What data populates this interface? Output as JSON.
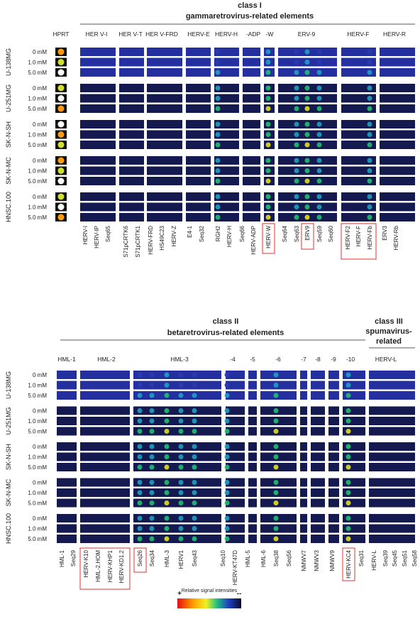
{
  "class1": {
    "title": "class I",
    "subtitle": "gammaretrovirus-related  elements",
    "hprt": "HPRT",
    "groups": [
      "HER V-I",
      "HER V-T",
      "HER V-FRD",
      "HERV-E",
      "HERV-H",
      "-ADP",
      "-W",
      "ERV-9",
      "HERV-F",
      "HERV-R"
    ],
    "probes": [
      "HERV-I",
      "HERV-IP",
      "Seq65",
      "S71pCRTK6",
      "S71pCRTK1",
      "HERV-FRD",
      "HS49C23",
      "HERV-Z",
      "E4-1",
      "Seq32",
      "RGH2",
      "HERV-H",
      "Seq66",
      "HERV-ADP",
      "HERV-W",
      "Seq64",
      "Seq63",
      "ERV9",
      "Seq59",
      "Seq60",
      "HERV-F2",
      "HERV-F",
      "HERV-Fb",
      "ERV3",
      "HERV-Rb"
    ]
  },
  "class2": {
    "title": "class II",
    "subtitle": "betaretrovirus-related  elements",
    "groups": [
      "HML-1",
      "HML-2",
      "HML-3",
      "-4",
      "-5",
      "-6",
      "-7",
      "-8",
      "-9",
      "-10"
    ]
  },
  "class3": {
    "title": "class III",
    "subtitle": [
      "spumavirus-",
      "related"
    ],
    "groups": [
      "HERV-L"
    ]
  },
  "probes2": [
    "HML-1",
    "Seq29",
    "HERV-K10",
    "HML-2.HOM",
    "HERV-KHP1",
    "HERV-KD1.2",
    "Seq26",
    "Seq34",
    "HML-3",
    "HERV1",
    "Seq43",
    "Seq10",
    "HERV-KT47D",
    "HML-5",
    "HML-6",
    "Seq38",
    "Seq56",
    "NMWV7",
    "NMWV3",
    "NMWV9",
    "HERV-KC4",
    "Seq31",
    "HERV-L",
    "Seq39",
    "Seq45",
    "Seq51",
    "Seq58"
  ],
  "cell_lines": [
    "U-138MG",
    "U-251MG",
    "SK-N-SH",
    "SK-N-MC",
    "HNSC.100"
  ],
  "concentrations": [
    "0 mM",
    "1.0 mM",
    "5.0 mM"
  ],
  "legend": {
    "title": "Relative signal intensities",
    "high": "+",
    "low": "--"
  }
}
